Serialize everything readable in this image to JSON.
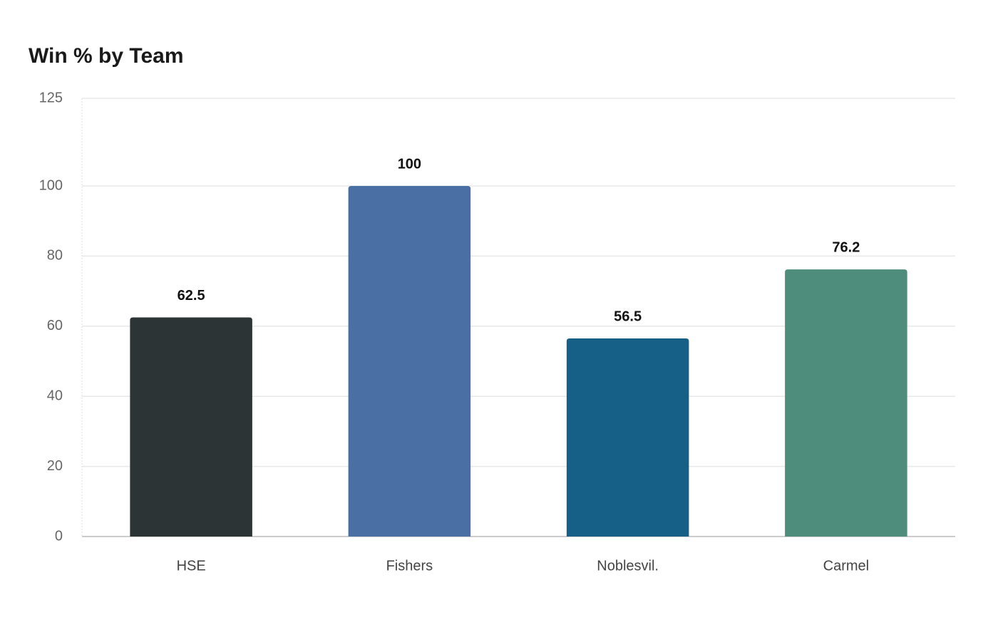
{
  "chart_data": {
    "type": "bar",
    "title": "Win % by Team",
    "categories": [
      "HSE",
      "Fishers",
      "Noblesvil.",
      "Carmel"
    ],
    "values": [
      62.5,
      100,
      56.5,
      76.2
    ],
    "colors": [
      "#2d3436",
      "#4a6fa5",
      "#166088",
      "#4e8d7c"
    ],
    "ylim": [
      0,
      125
    ],
    "yticks": [
      0,
      20,
      40,
      60,
      80,
      100,
      125
    ],
    "grid": true
  }
}
